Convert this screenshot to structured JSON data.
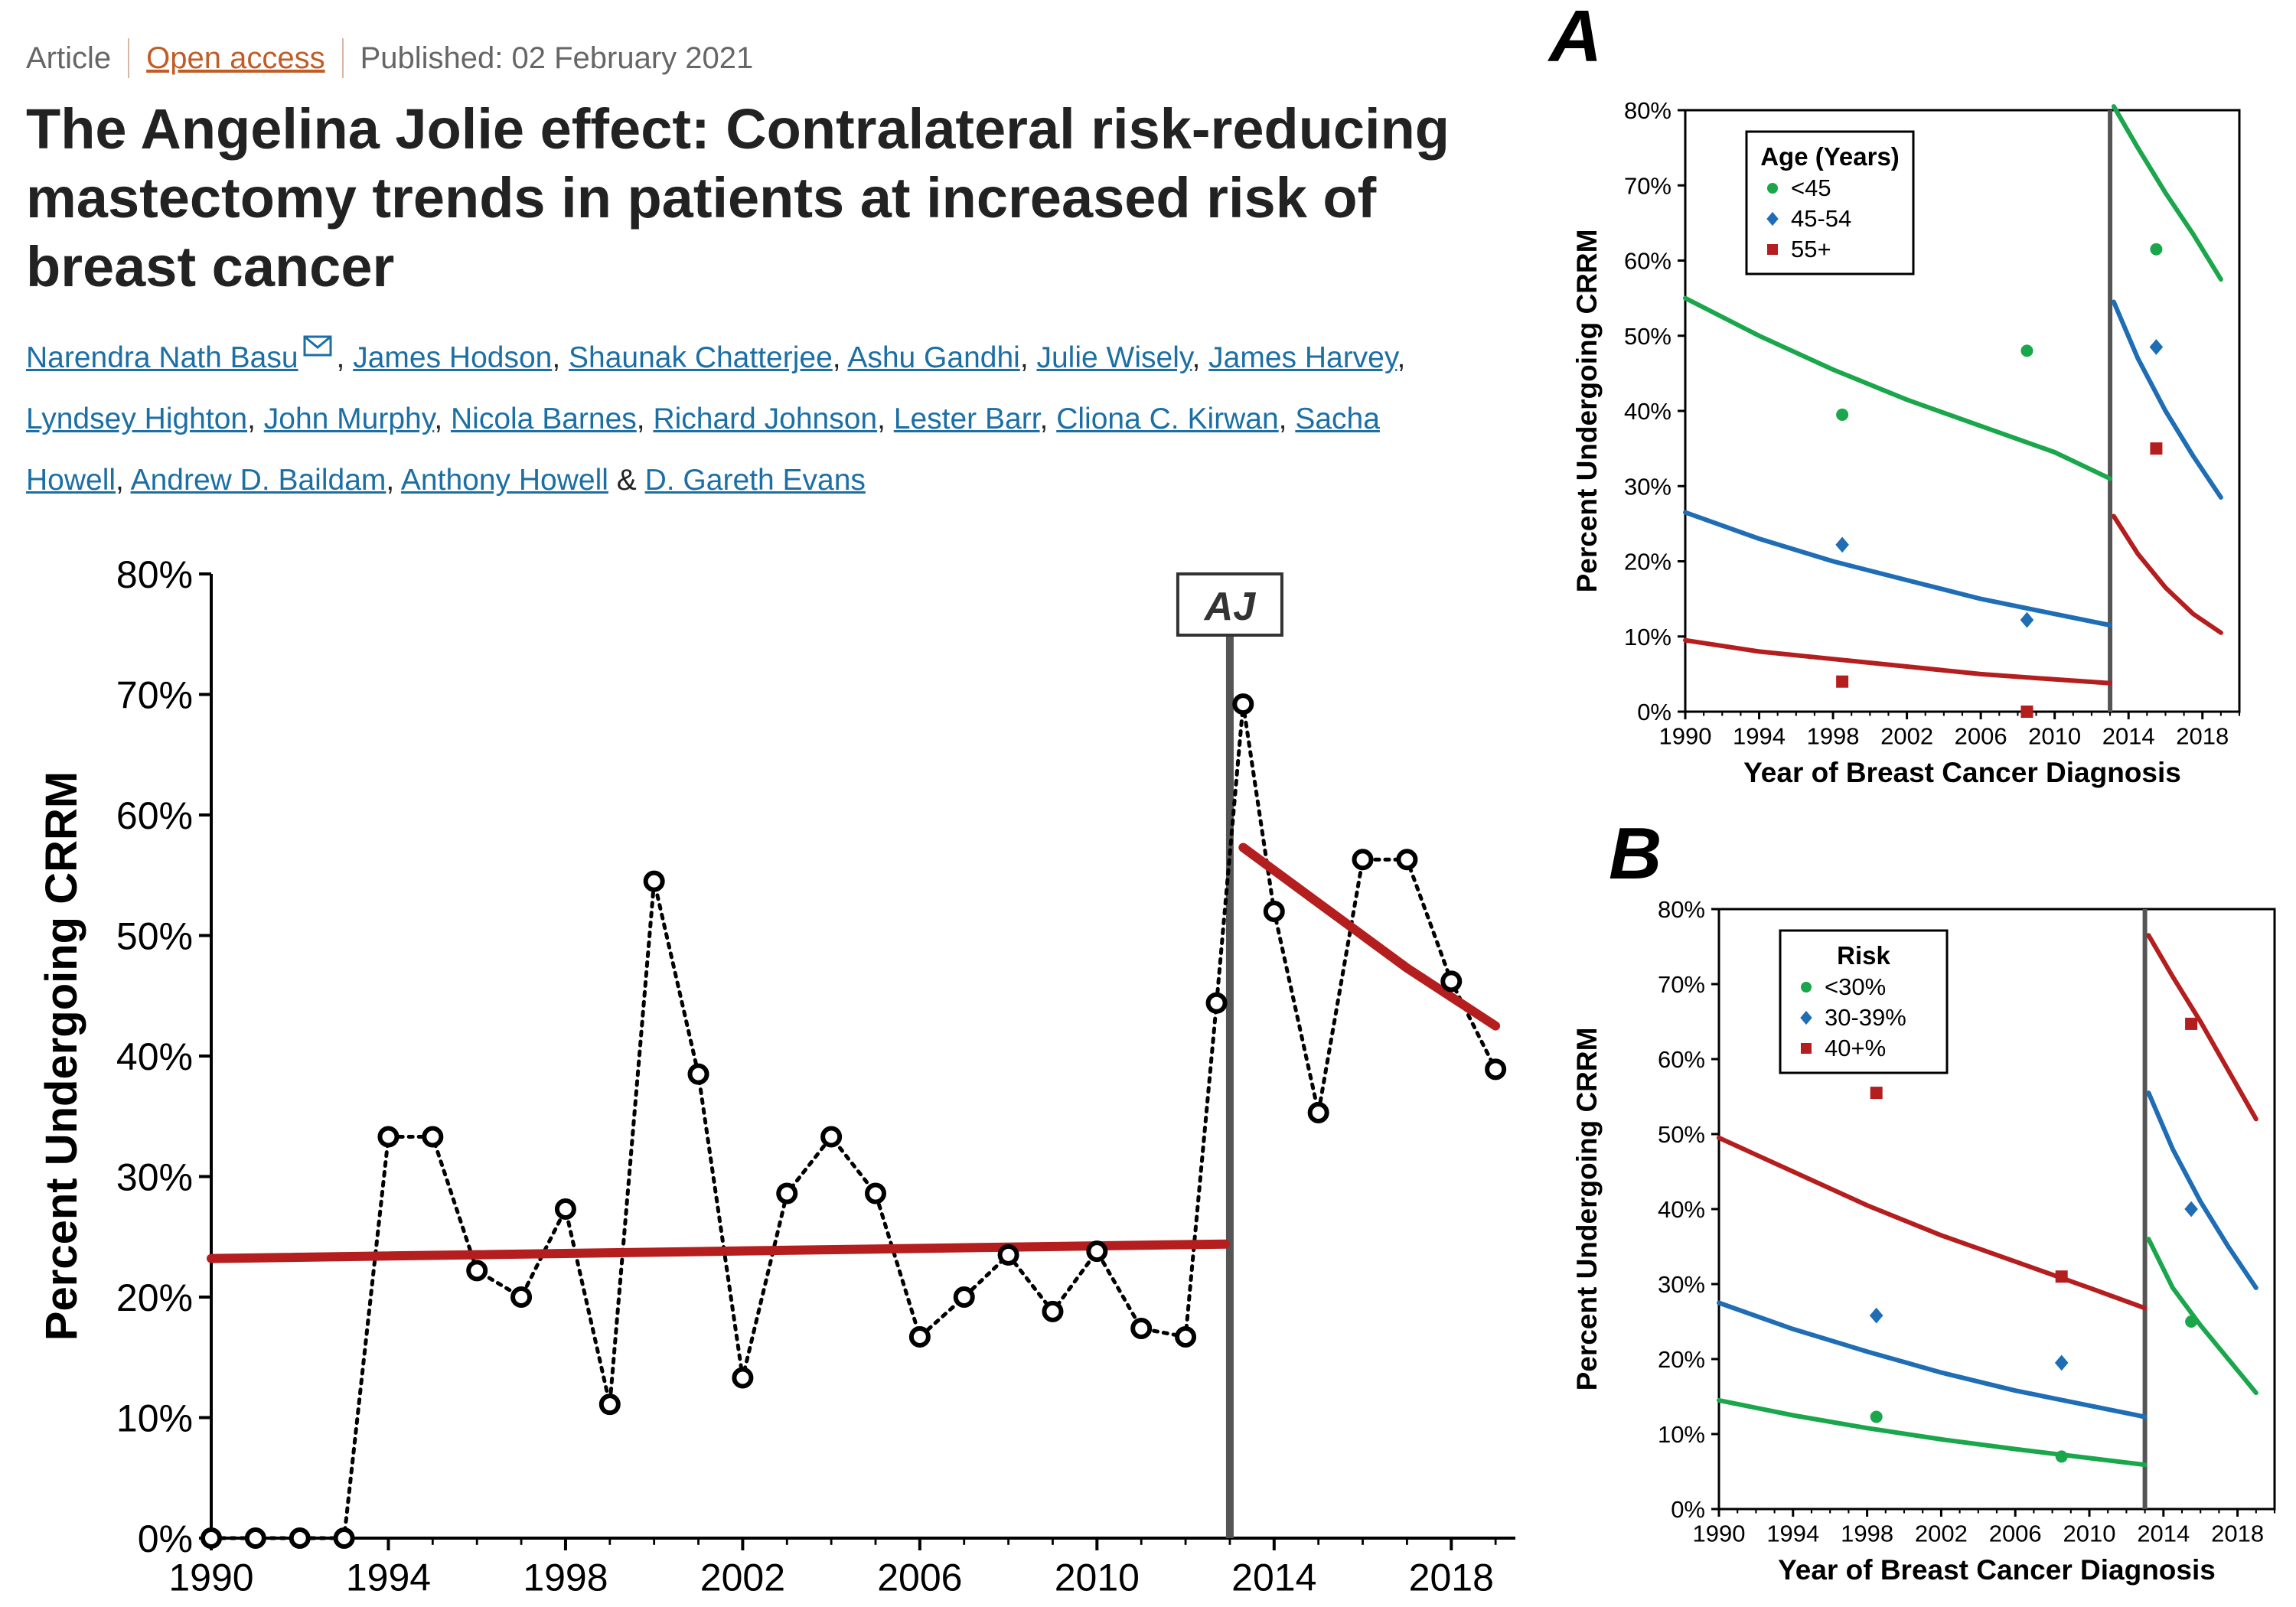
{
  "article": {
    "type": "Article",
    "access": "Open access",
    "published": "Published: 02 February 2021",
    "title": "The Angelina Jolie effect: Contralateral risk-reducing mastectomy trends in patients at increased risk of breast cancer",
    "authors": [
      "Narendra Nath Basu",
      "James Hodson",
      "Shaunak Chatterjee",
      "Ashu Gandhi",
      "Julie Wisely",
      "James Harvey",
      "Lyndsey Highton",
      "John Murphy",
      "Nicola Barnes",
      "Richard Johnson",
      "Lester Barr",
      "Cliona C. Kirwan",
      "Sacha Howell",
      "Andrew D. Baildam",
      "Anthony Howell",
      "D. Gareth Evans"
    ],
    "mail_icon": "envelope-icon"
  },
  "chart_data": [
    {
      "id": "main",
      "type": "line",
      "xlabel": "Year of Breast Cancer Diagnosis",
      "ylabel": "Percent Undergoing CRRM",
      "xlim": [
        1990,
        2020
      ],
      "ylim": [
        0,
        80
      ],
      "xticks": [
        "1990",
        "1994",
        "1998",
        "2002",
        "2006",
        "2010",
        "2014",
        "2018"
      ],
      "yticks": [
        "0%",
        "10%",
        "20%",
        "30%",
        "40%",
        "50%",
        "60%",
        "70%",
        "80%"
      ],
      "annotation": {
        "label": "AJ",
        "x": 2013
      },
      "colors": {
        "points": "#000000",
        "trend": "#b41e1e",
        "divider": "#555555"
      },
      "points": {
        "x": [
          1990,
          1991,
          1992,
          1993,
          1994,
          1995,
          1996,
          1997,
          1998,
          1999,
          2000,
          2001,
          2002,
          2003,
          2004,
          2005,
          2006,
          2007,
          2008,
          2009,
          2010,
          2011,
          2012,
          2012.7,
          2013.3,
          2014,
          2015,
          2016,
          2017,
          2018,
          2019
        ],
        "y": [
          0,
          0,
          0,
          0,
          33.3,
          33.3,
          22.2,
          20.0,
          27.3,
          11.1,
          54.5,
          38.5,
          13.3,
          28.6,
          33.3,
          28.6,
          16.7,
          20.0,
          23.5,
          18.8,
          23.8,
          17.4,
          16.7,
          44.4,
          69.2,
          52.0,
          35.3,
          56.3,
          56.3,
          46.2,
          38.9
        ]
      },
      "trends": [
        {
          "x": [
            1990,
            2012.9
          ],
          "y": [
            23.2,
            24.4
          ]
        },
        {
          "x": [
            2013.3,
            2015,
            2017,
            2019
          ],
          "y": [
            57.3,
            52.7,
            47.3,
            42.5
          ]
        }
      ]
    },
    {
      "id": "A",
      "panel_label": "A",
      "type": "scatter",
      "xlabel": "Year of Breast Cancer Diagnosis",
      "ylabel": "Percent Undergoing CRRM",
      "xlim": [
        1990,
        2020
      ],
      "ylim": [
        0,
        80
      ],
      "xticks": [
        "1990",
        "1994",
        "1998",
        "2002",
        "2006",
        "2010",
        "2014",
        "2018"
      ],
      "yticks": [
        "0%",
        "10%",
        "20%",
        "30%",
        "40%",
        "50%",
        "60%",
        "70%",
        "80%"
      ],
      "divider_x": 2013,
      "legend": {
        "title": "Age (Years)",
        "position": "top-left"
      },
      "series": [
        {
          "name": "<45",
          "color": "#1aa64b",
          "marker": "circle",
          "points": {
            "x": [
              1998.5,
              2008.5,
              2015.5
            ],
            "y": [
              39.5,
              48.0,
              61.5
            ]
          },
          "curves": [
            {
              "x": [
                1990,
                1994,
                1998,
                2002,
                2006,
                2010,
                2013
              ],
              "y": [
                55.0,
                50.0,
                45.5,
                41.5,
                38.0,
                34.5,
                31.0
              ]
            },
            {
              "x": [
                2013.2,
                2014.5,
                2016,
                2017.5,
                2019
              ],
              "y": [
                80.5,
                75.0,
                69.0,
                63.5,
                57.5
              ]
            }
          ]
        },
        {
          "name": "45-54",
          "color": "#1f6db5",
          "marker": "diamond",
          "points": {
            "x": [
              1998.5,
              2008.5,
              2015.5
            ],
            "y": [
              22.2,
              12.2,
              48.5
            ]
          },
          "curves": [
            {
              "x": [
                1990,
                1994,
                1998,
                2002,
                2006,
                2010,
                2013
              ],
              "y": [
                26.5,
                23.0,
                20.0,
                17.5,
                15.0,
                13.0,
                11.5
              ]
            },
            {
              "x": [
                2013.2,
                2014.5,
                2016,
                2017.5,
                2019
              ],
              "y": [
                54.5,
                47.0,
                40.0,
                34.0,
                28.5
              ]
            }
          ]
        },
        {
          "name": "55+",
          "color": "#b41e1e",
          "marker": "square",
          "points": {
            "x": [
              1998.5,
              2008.5,
              2015.5
            ],
            "y": [
              4.0,
              0.0,
              35.0
            ]
          },
          "curves": [
            {
              "x": [
                1990,
                1994,
                1998,
                2002,
                2006,
                2010,
                2013
              ],
              "y": [
                9.5,
                8.0,
                7.0,
                6.0,
                5.0,
                4.3,
                3.8
              ]
            },
            {
              "x": [
                2013.2,
                2014.5,
                2016,
                2017.5,
                2019
              ],
              "y": [
                26.0,
                21.0,
                16.5,
                13.0,
                10.5
              ]
            }
          ]
        }
      ]
    },
    {
      "id": "B",
      "panel_label": "B",
      "type": "scatter",
      "xlabel": "Year of Breast Cancer Diagnosis",
      "ylabel": "Percent Undergoing CRRM",
      "xlim": [
        1990,
        2020
      ],
      "ylim": [
        0,
        80
      ],
      "xticks": [
        "1990",
        "1994",
        "1998",
        "2002",
        "2006",
        "2010",
        "2014",
        "2018"
      ],
      "yticks": [
        "0%",
        "10%",
        "20%",
        "30%",
        "40%",
        "50%",
        "60%",
        "70%",
        "80%"
      ],
      "divider_x": 2013,
      "legend": {
        "title": "Risk",
        "position": "top-left"
      },
      "series": [
        {
          "name": "<30%",
          "color": "#1aa64b",
          "marker": "circle",
          "points": {
            "x": [
              1998.5,
              2008.5,
              2015.5
            ],
            "y": [
              12.3,
              7.0,
              25.0
            ]
          },
          "curves": [
            {
              "x": [
                1990,
                1994,
                1998,
                2002,
                2006,
                2010,
                2013
              ],
              "y": [
                14.5,
                12.5,
                10.8,
                9.3,
                8.0,
                6.8,
                5.9
              ]
            },
            {
              "x": [
                2013.2,
                2014.5,
                2016,
                2017.5,
                2019
              ],
              "y": [
                36.0,
                29.5,
                24.5,
                20.0,
                15.5
              ]
            }
          ]
        },
        {
          "name": "30-39%",
          "color": "#1f6db5",
          "marker": "diamond",
          "points": {
            "x": [
              1998.5,
              2008.5,
              2015.5
            ],
            "y": [
              25.8,
              19.5,
              40.0
            ]
          },
          "curves": [
            {
              "x": [
                1990,
                1994,
                1998,
                2002,
                2006,
                2010,
                2013
              ],
              "y": [
                27.5,
                24.0,
                21.0,
                18.2,
                15.8,
                13.8,
                12.3
              ]
            },
            {
              "x": [
                2013.2,
                2014.5,
                2016,
                2017.5,
                2019
              ],
              "y": [
                55.5,
                48.0,
                41.0,
                35.0,
                29.5
              ]
            }
          ]
        },
        {
          "name": "40+%",
          "color": "#b41e1e",
          "marker": "square",
          "points": {
            "x": [
              1998.5,
              2008.5,
              2015.5
            ],
            "y": [
              55.5,
              31.0,
              64.7
            ]
          },
          "curves": [
            {
              "x": [
                1990,
                1994,
                1998,
                2002,
                2006,
                2010,
                2013
              ],
              "y": [
                49.5,
                45.0,
                40.5,
                36.5,
                33.0,
                29.5,
                26.8
              ]
            },
            {
              "x": [
                2013.2,
                2014.5,
                2016,
                2017.5,
                2019
              ],
              "y": [
                76.5,
                71.0,
                65.0,
                58.5,
                52.0
              ]
            }
          ]
        }
      ]
    }
  ]
}
